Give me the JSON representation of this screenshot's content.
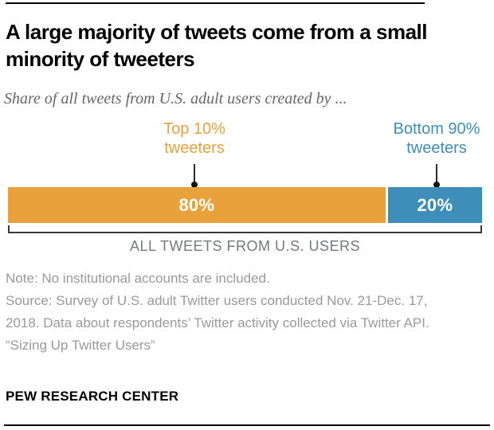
{
  "chart_data": {
    "type": "bar",
    "orientation": "horizontal_stacked",
    "title": "A large majority of tweets come from a small minority of tweeters",
    "subtitle": "Share of all tweets from U.S. adult users created by ...",
    "categories": [
      "Top 10% tweeters",
      "Bottom 90% tweeters"
    ],
    "values": [
      80,
      20
    ],
    "value_labels": [
      "80%",
      "20%"
    ],
    "colors": [
      "#E9A13B",
      "#3D8EB8"
    ],
    "xlabel": "ALL TWEETS FROM U.S. USERS",
    "xlim": [
      0,
      100
    ],
    "grid": false,
    "legend_position": "callout-labels-above-bar"
  },
  "header": {
    "title": "A large majority of tweets come from a small minority of tweeters",
    "subtitle": "Share of all tweets from U.S. adult users created by ..."
  },
  "callouts": {
    "top10": {
      "label": "Top 10% tweeters",
      "color": "#E9A13B"
    },
    "bottom90": {
      "label": "Bottom 90% tweeters",
      "color": "#3D8EB8"
    }
  },
  "bar": {
    "segments": [
      {
        "name": "top10",
        "pct": 80,
        "value_label": "80%",
        "color": "#E9A13B"
      },
      {
        "name": "bottom90",
        "pct": 20,
        "value_label": "20%",
        "color": "#3D8EB8"
      }
    ]
  },
  "bracket": {
    "label": "ALL TWEETS FROM U.S. USERS"
  },
  "notes": {
    "note": "Note: No institutional accounts are included.",
    "source": "Source: Survey of U.S. adult Twitter users conducted Nov. 21-Dec. 17, 2018. Data about respondents’ Twitter activity collected via Twitter API.",
    "citation": "“Sizing Up Twitter Users”"
  },
  "footer": {
    "brand": "PEW RESEARCH CENTER"
  }
}
